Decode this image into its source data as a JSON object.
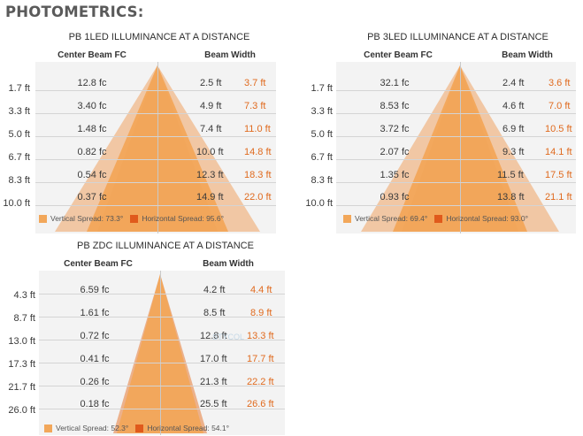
{
  "page": {
    "title": "PHOTOMETRICS:"
  },
  "colors": {
    "vertical": "#f2a75a",
    "horizontal": "#e05a1c",
    "accent_text": "#e06a1e"
  },
  "panels": [
    {
      "title": "PB  1LED ILLUMINANCE AT A DISTANCE",
      "col_center": "Center Beam FC",
      "col_width": "Beam Width",
      "rows": [
        {
          "distance": "1.7 ft",
          "fc": "12.8 fc",
          "vertical": "2.5 ft",
          "horizontal": "3.7 ft"
        },
        {
          "distance": "3.3 ft",
          "fc": "3.40 fc",
          "vertical": "4.9 ft",
          "horizontal": "7.3 ft"
        },
        {
          "distance": "5.0 ft",
          "fc": "1.48 fc",
          "vertical": "7.4 ft",
          "horizontal": "11.0 ft"
        },
        {
          "distance": "6.7 ft",
          "fc": "0.82 fc",
          "vertical": "10.0 ft",
          "horizontal": "14.8 ft"
        },
        {
          "distance": "8.3 ft",
          "fc": "0.54 fc",
          "vertical": "12.3 ft",
          "horizontal": "18.3 ft"
        },
        {
          "distance": "10.0 ft",
          "fc": "0.37 fc",
          "vertical": "14.9 ft",
          "horizontal": "22.0 ft"
        }
      ],
      "legend": {
        "vertical": "Vertical Spread: 73.3°",
        "horizontal": "Horizontal Spread: 95.6°"
      },
      "spread_deg": {
        "vertical": 73.3,
        "horizontal": 95.6
      }
    },
    {
      "title": "PB  3LED ILLUMINANCE AT A DISTANCE",
      "col_center": "Center Beam FC",
      "col_width": "Beam Width",
      "rows": [
        {
          "distance": "1.7 ft",
          "fc": "32.1 fc",
          "vertical": "2.4 ft",
          "horizontal": "3.6 ft"
        },
        {
          "distance": "3.3 ft",
          "fc": "8.53 fc",
          "vertical": "4.6 ft",
          "horizontal": "7.0 ft"
        },
        {
          "distance": "5.0 ft",
          "fc": "3.72 fc",
          "vertical": "6.9 ft",
          "horizontal": "10.5 ft"
        },
        {
          "distance": "6.7 ft",
          "fc": "2.07 fc",
          "vertical": "9.3 ft",
          "horizontal": "14.1 ft"
        },
        {
          "distance": "8.3 ft",
          "fc": "1.35 fc",
          "vertical": "11.5 ft",
          "horizontal": "17.5 ft"
        },
        {
          "distance": "10.0 ft",
          "fc": "0.93 fc",
          "vertical": "13.8 ft",
          "horizontal": "21.1 ft"
        }
      ],
      "legend": {
        "vertical": "Vertical Spread: 69.4°",
        "horizontal": "Horizontal Spread: 93.0°"
      },
      "spread_deg": {
        "vertical": 69.4,
        "horizontal": 93.0
      }
    },
    {
      "title": "PB  ZDC ILLUMINANCE AT A DISTANCE",
      "col_center": "Center Beam FC",
      "col_width": "Beam Width",
      "rows": [
        {
          "distance": "4.3 ft",
          "fc": "6.59 fc",
          "vertical": "4.2 ft",
          "horizontal": "4.4 ft"
        },
        {
          "distance": "8.7 ft",
          "fc": "1.61 fc",
          "vertical": "8.5 ft",
          "horizontal": "8.9 ft"
        },
        {
          "distance": "13.0 ft",
          "fc": "0.72 fc",
          "vertical": "12.8 ft",
          "horizontal": "13.3 ft"
        },
        {
          "distance": "17.3 ft",
          "fc": "0.41 fc",
          "vertical": "17.0 ft",
          "horizontal": "17.7 ft"
        },
        {
          "distance": "21.7 ft",
          "fc": "0.26 fc",
          "vertical": "21.3 ft",
          "horizontal": "22.2 ft"
        },
        {
          "distance": "26.0 ft",
          "fc": "0.18 fc",
          "vertical": "25.5 ft",
          "horizontal": "26.6 ft"
        }
      ],
      "legend": {
        "vertical": "Vertical Spread: 52.3°",
        "horizontal": "Horizontal Spread: 54.1°"
      },
      "spread_deg": {
        "vertical": 52.3,
        "horizontal": 54.1
      },
      "watermark": "STYCOL"
    }
  ]
}
